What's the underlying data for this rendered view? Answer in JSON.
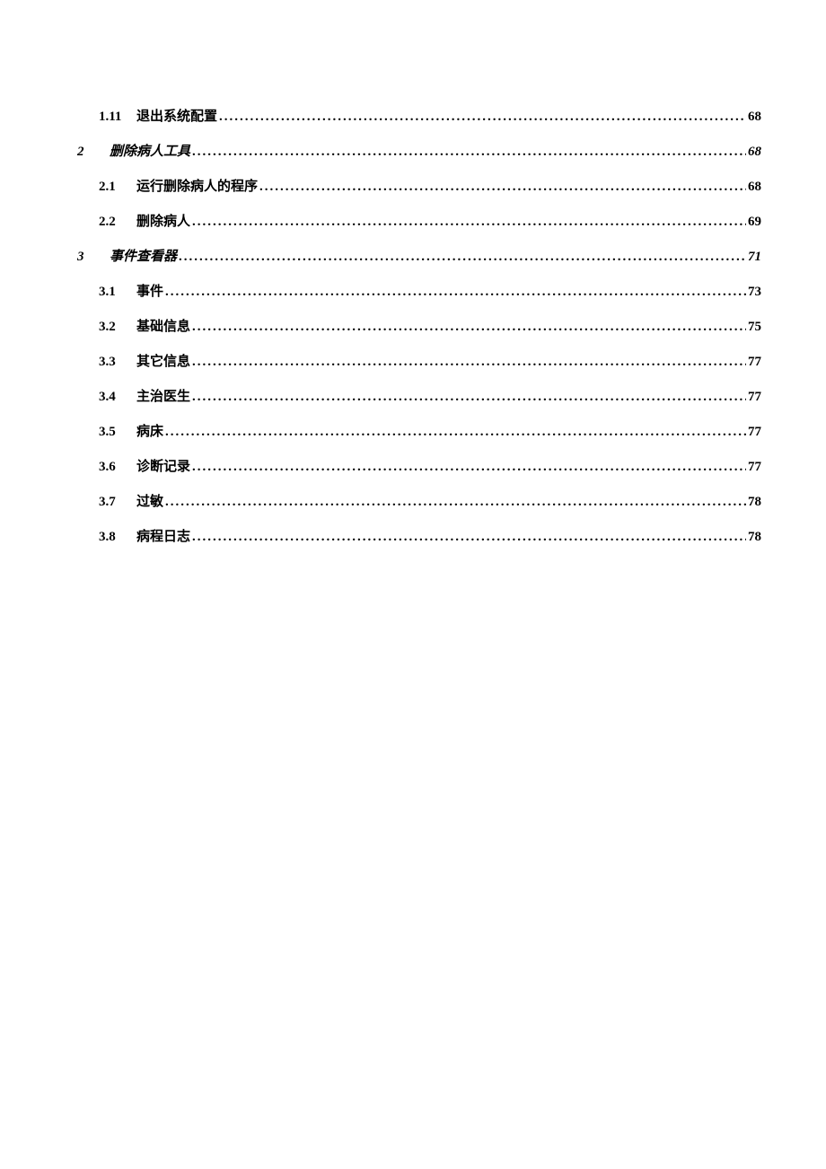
{
  "toc": [
    {
      "level": "sub",
      "num": "1.11",
      "title": "退出系统配置",
      "page": "68"
    },
    {
      "level": "chapter",
      "num": "2",
      "title": "删除病人工具",
      "page": "68"
    },
    {
      "level": "sub",
      "num": "2.1",
      "title": "运行删除病人的程序",
      "page": "68"
    },
    {
      "level": "sub",
      "num": "2.2",
      "title": "删除病人",
      "page": "69"
    },
    {
      "level": "chapter",
      "num": "3",
      "title": "事件查看器",
      "page": "71"
    },
    {
      "level": "sub",
      "num": "3.1",
      "title": "事件",
      "page": "73"
    },
    {
      "level": "sub",
      "num": "3.2",
      "title": "基础信息",
      "page": "75"
    },
    {
      "level": "sub",
      "num": "3.3",
      "title": "其它信息",
      "page": "77"
    },
    {
      "level": "sub",
      "num": "3.4",
      "title": "主治医生",
      "page": "77"
    },
    {
      "level": "sub",
      "num": "3.5",
      "title": "病床",
      "page": "77"
    },
    {
      "level": "sub",
      "num": "3.6",
      "title": "诊断记录",
      "page": "77"
    },
    {
      "level": "sub",
      "num": "3.7",
      "title": "过敏",
      "page": "78"
    },
    {
      "level": "sub",
      "num": "3.8",
      "title": "病程日志",
      "page": "78"
    }
  ]
}
